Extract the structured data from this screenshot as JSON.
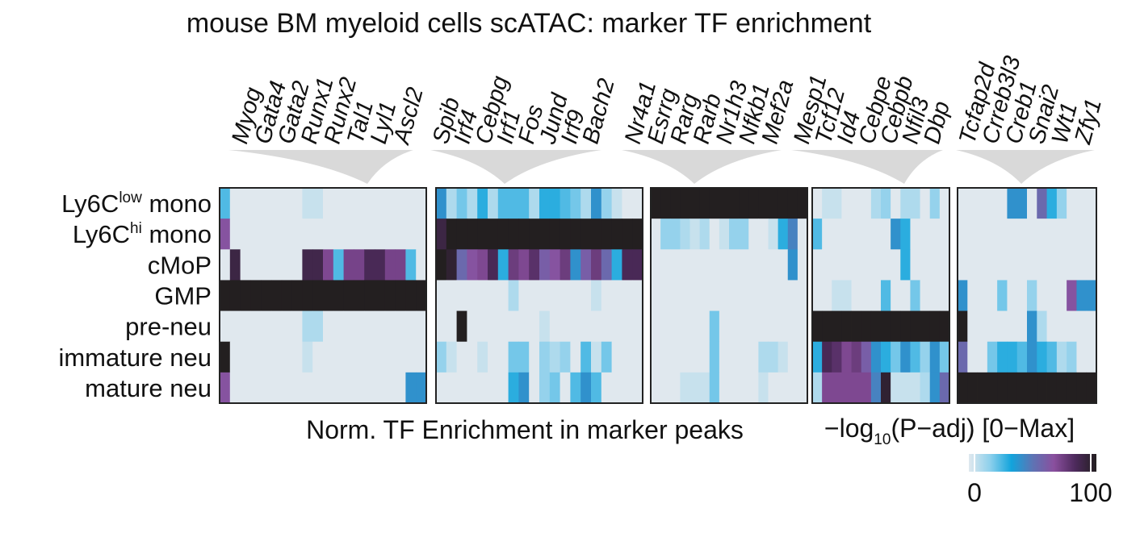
{
  "chart_data": {
    "type": "heatmap",
    "title": "mouse BM myeloid cells scATAC: marker TF enrichment",
    "xlabel": "Norm. TF Enrichment in marker peaks",
    "colorbar_label": {
      "text": "−log",
      "sub": "10",
      "suffix": "(P−adj) [0−Max]"
    },
    "clim": [
      0,
      100
    ],
    "colorbar_ticks": [
      0,
      100
    ],
    "colormap": [
      "#e0e8ee",
      "#8dd0ec",
      "#12a4dc",
      "#5d74b4",
      "#8a4f9e",
      "#4d2a5c",
      "#231f20"
    ],
    "rows": [
      {
        "text": "Ly6C",
        "sup": "low",
        "suffix": " mono"
      },
      {
        "text": "Ly6C",
        "sup": "hi",
        "suffix": " mono"
      },
      "cMoP",
      "GMP",
      "pre-neu",
      "immature neu",
      "mature neu"
    ],
    "panels": [
      {
        "columns": [
          null,
          null,
          null,
          null,
          null,
          null,
          null,
          null,
          null,
          null,
          null,
          "Myog",
          "Gata4",
          "Gata2",
          "Runx1",
          "Runx2",
          "Tal1",
          "Lyl1",
          "Ascl2",
          null
        ],
        "values": [
          [
            25,
            0,
            0,
            0,
            0,
            0,
            0,
            0,
            5,
            5,
            0,
            0,
            0,
            0,
            0,
            0,
            0,
            0,
            0,
            0
          ],
          [
            65,
            0,
            0,
            0,
            0,
            0,
            0,
            0,
            0,
            0,
            0,
            0,
            0,
            0,
            0,
            0,
            0,
            0,
            0,
            0
          ],
          [
            0,
            90,
            0,
            0,
            0,
            0,
            0,
            0,
            88,
            88,
            70,
            25,
            72,
            72,
            85,
            85,
            72,
            72,
            25,
            0
          ],
          [
            100,
            100,
            100,
            100,
            100,
            100,
            100,
            100,
            100,
            100,
            100,
            100,
            100,
            100,
            100,
            100,
            100,
            100,
            100,
            100
          ],
          [
            0,
            0,
            0,
            0,
            0,
            0,
            0,
            0,
            10,
            10,
            0,
            0,
            0,
            0,
            0,
            0,
            0,
            0,
            0,
            0
          ],
          [
            100,
            0,
            0,
            0,
            0,
            0,
            0,
            0,
            5,
            0,
            0,
            0,
            0,
            0,
            0,
            0,
            0,
            0,
            0,
            0
          ],
          [
            65,
            0,
            0,
            0,
            0,
            0,
            0,
            0,
            0,
            0,
            0,
            0,
            0,
            0,
            0,
            0,
            0,
            0,
            40,
            40
          ]
        ]
      },
      {
        "columns": [
          null,
          null,
          null,
          "Spib",
          "Irf4",
          "Cebpg",
          "Irf1",
          "Fos",
          "Jund",
          "Irf9",
          "Bach2",
          null,
          null,
          null,
          null,
          null,
          null,
          null,
          null,
          null
        ],
        "values": [
          [
            40,
            10,
            20,
            10,
            30,
            10,
            25,
            25,
            25,
            10,
            30,
            30,
            25,
            20,
            10,
            40,
            15,
            5,
            0,
            0
          ],
          [
            90,
            100,
            100,
            100,
            100,
            100,
            100,
            100,
            100,
            100,
            100,
            100,
            100,
            100,
            100,
            100,
            100,
            100,
            100,
            100
          ],
          [
            100,
            95,
            55,
            65,
            70,
            85,
            30,
            75,
            70,
            80,
            60,
            65,
            75,
            40,
            60,
            75,
            55,
            30,
            85,
            85
          ],
          [
            0,
            0,
            0,
            0,
            0,
            0,
            0,
            10,
            0,
            0,
            0,
            0,
            0,
            0,
            0,
            5,
            0,
            0,
            0,
            0
          ],
          [
            0,
            0,
            100,
            0,
            0,
            0,
            0,
            0,
            0,
            0,
            5,
            0,
            0,
            0,
            0,
            0,
            0,
            0,
            0,
            0
          ],
          [
            15,
            5,
            0,
            0,
            5,
            0,
            0,
            20,
            20,
            0,
            15,
            10,
            15,
            0,
            25,
            5,
            20,
            0,
            0,
            0
          ],
          [
            0,
            0,
            0,
            0,
            0,
            0,
            0,
            30,
            40,
            0,
            15,
            20,
            0,
            25,
            40,
            25,
            0,
            0,
            0,
            0
          ]
        ]
      },
      {
        "columns": [
          null,
          null,
          "Nr4a1",
          "Esrrg",
          "Rarg",
          "Rarb",
          "Nr1h3",
          "Nfkb1",
          "Mef2a",
          null,
          null,
          null,
          null,
          null,
          null,
          null
        ],
        "values": [
          [
            100,
            100,
            100,
            100,
            100,
            100,
            100,
            100,
            100,
            100,
            100,
            100,
            100,
            100,
            100,
            100
          ],
          [
            0,
            15,
            15,
            10,
            5,
            10,
            0,
            5,
            15,
            15,
            0,
            0,
            5,
            30,
            45,
            0
          ],
          [
            0,
            0,
            0,
            0,
            0,
            0,
            0,
            0,
            0,
            0,
            0,
            0,
            0,
            0,
            40,
            0
          ],
          [
            0,
            0,
            0,
            0,
            0,
            0,
            0,
            0,
            0,
            0,
            0,
            0,
            0,
            0,
            0,
            0
          ],
          [
            0,
            0,
            0,
            0,
            0,
            0,
            20,
            0,
            0,
            0,
            0,
            0,
            0,
            0,
            0,
            0
          ],
          [
            0,
            0,
            0,
            0,
            0,
            0,
            20,
            0,
            0,
            0,
            0,
            10,
            10,
            5,
            0,
            0
          ],
          [
            0,
            0,
            0,
            5,
            5,
            5,
            20,
            0,
            0,
            0,
            0,
            5,
            0,
            0,
            0,
            0
          ]
        ]
      },
      {
        "columns": [
          null,
          null,
          null,
          null,
          "Mesp1",
          "Tcf12",
          "Id4",
          "Cebpe",
          "Cebpb",
          "Nfil3",
          "Dbp",
          null,
          null,
          null
        ],
        "values": [
          [
            0,
            5,
            5,
            0,
            0,
            0,
            10,
            15,
            0,
            10,
            10,
            0,
            15,
            0
          ],
          [
            25,
            0,
            0,
            0,
            0,
            0,
            0,
            0,
            40,
            30,
            0,
            0,
            0,
            0
          ],
          [
            0,
            0,
            0,
            0,
            0,
            0,
            0,
            0,
            0,
            30,
            0,
            0,
            0,
            0
          ],
          [
            0,
            0,
            5,
            5,
            0,
            0,
            0,
            25,
            0,
            0,
            20,
            0,
            0,
            0
          ],
          [
            100,
            100,
            100,
            100,
            100,
            100,
            100,
            100,
            100,
            100,
            100,
            100,
            100,
            100
          ],
          [
            30,
            85,
            80,
            70,
            75,
            60,
            40,
            30,
            20,
            40,
            25,
            15,
            40,
            20
          ],
          [
            10,
            70,
            70,
            70,
            70,
            70,
            45,
            95,
            5,
            5,
            5,
            10,
            40,
            55
          ]
        ]
      },
      {
        "columns": [
          null,
          null,
          null,
          null,
          "Tcfap2d",
          "Crreb3l3",
          "Creb1",
          "Snai2",
          "Wt1",
          "Zfy1",
          null,
          null,
          null,
          null
        ],
        "values": [
          [
            0,
            0,
            0,
            0,
            0,
            40,
            40,
            0,
            55,
            30,
            15,
            0,
            0,
            0
          ],
          [
            0,
            0,
            0,
            0,
            0,
            0,
            0,
            0,
            0,
            0,
            0,
            0,
            0,
            0
          ],
          [
            0,
            0,
            0,
            0,
            0,
            0,
            0,
            0,
            0,
            0,
            0,
            0,
            0,
            0
          ],
          [
            40,
            0,
            0,
            0,
            20,
            0,
            0,
            15,
            0,
            0,
            0,
            65,
            40,
            40
          ],
          [
            100,
            0,
            0,
            0,
            0,
            0,
            0,
            40,
            10,
            0,
            0,
            0,
            0,
            0
          ],
          [
            55,
            0,
            0,
            20,
            30,
            30,
            25,
            40,
            30,
            25,
            10,
            15,
            0,
            0
          ],
          [
            100,
            100,
            100,
            100,
            100,
            100,
            100,
            100,
            100,
            100,
            100,
            100,
            100,
            100
          ]
        ]
      }
    ]
  }
}
